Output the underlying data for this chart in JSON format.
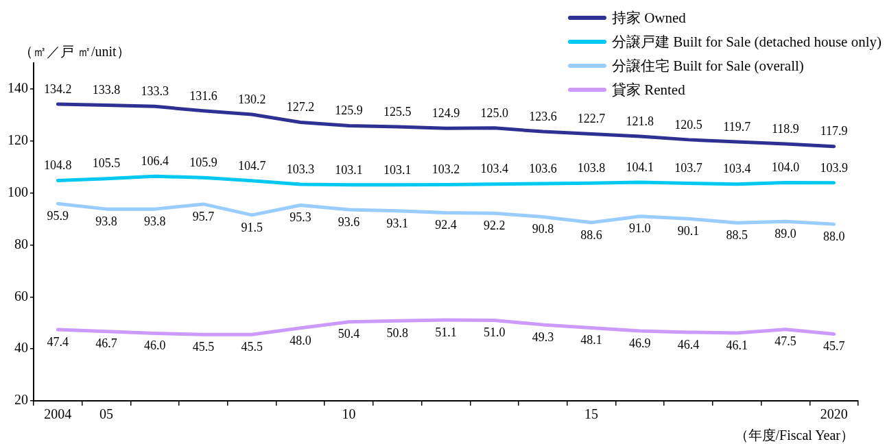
{
  "chart_data": {
    "type": "line",
    "ylabel": "（㎡／戸 ㎡/unit）",
    "xlabel": "（年度/Fiscal Year）",
    "categories": [
      "2004",
      "05",
      null,
      null,
      null,
      null,
      "10",
      null,
      null,
      null,
      null,
      "15",
      null,
      null,
      null,
      null,
      "2020"
    ],
    "ylim": [
      20,
      150
    ],
    "yticks": [
      20,
      40,
      60,
      80,
      100,
      120,
      140
    ],
    "grid": false,
    "legend": "top right",
    "marker": "none",
    "line_style": "solid",
    "series": [
      {
        "name": "持家 Owned",
        "color": "#2e3192",
        "values": [
          134.2,
          133.8,
          133.3,
          131.6,
          130.2,
          127.2,
          125.9,
          125.5,
          124.9,
          125.0,
          123.6,
          122.7,
          121.8,
          120.5,
          119.7,
          118.9,
          117.9
        ],
        "value_labels": [
          "134.2",
          "133.8",
          "133.3",
          "131.6",
          "130.2",
          "127.2",
          "125.9",
          "125.5",
          "124.9",
          "125.0",
          "123.6",
          "122.7",
          "121.8",
          "120.5",
          "119.7",
          "118.9",
          "117.9"
        ]
      },
      {
        "name": "分譲戸建 Built for Sale (detached house only)",
        "color": "#00c8f0",
        "values": [
          104.8,
          105.5,
          106.4,
          105.9,
          104.7,
          103.3,
          103.1,
          103.1,
          103.2,
          103.4,
          103.6,
          103.8,
          104.1,
          103.7,
          103.4,
          104.0,
          103.9
        ],
        "value_labels": [
          "104.8",
          "105.5",
          "106.4",
          "105.9",
          "104.7",
          "103.3",
          "103.1",
          "103.1",
          "103.2",
          "103.4",
          "103.6",
          "103.8",
          "104.1",
          "103.7",
          "103.4",
          "104.0",
          "103.9"
        ]
      },
      {
        "name": "分譲住宅 Built for Sale (overall)",
        "color": "#99ccff",
        "values": [
          95.9,
          93.8,
          93.8,
          95.7,
          91.5,
          95.3,
          93.6,
          93.1,
          92.4,
          92.2,
          90.8,
          88.6,
          91.0,
          90.1,
          88.5,
          89.0,
          88.0
        ],
        "value_labels": [
          "95.9",
          "93.8",
          "93.8",
          "95.7",
          "91.5",
          "95.3",
          "93.6",
          "93.1",
          "92.4",
          "92.2",
          "90.8",
          "88.6",
          "91.0",
          "90.1",
          "88.5",
          "89.0",
          "88.0"
        ]
      },
      {
        "name": "貸家 Rented",
        "color": "#cc99ff",
        "values": [
          47.4,
          46.7,
          46.0,
          45.5,
          45.5,
          48.0,
          50.4,
          50.8,
          51.1,
          51.0,
          49.3,
          48.1,
          46.9,
          46.4,
          46.1,
          47.5,
          45.7
        ],
        "value_labels": [
          "47.4",
          "46.7",
          "46.0",
          "45.5",
          "45.5",
          "48.0",
          "50.4",
          "50.8",
          "51.1",
          "51.0",
          "49.3",
          "48.1",
          "46.9",
          "46.4",
          "46.1",
          "47.5",
          "45.7"
        ]
      }
    ]
  }
}
